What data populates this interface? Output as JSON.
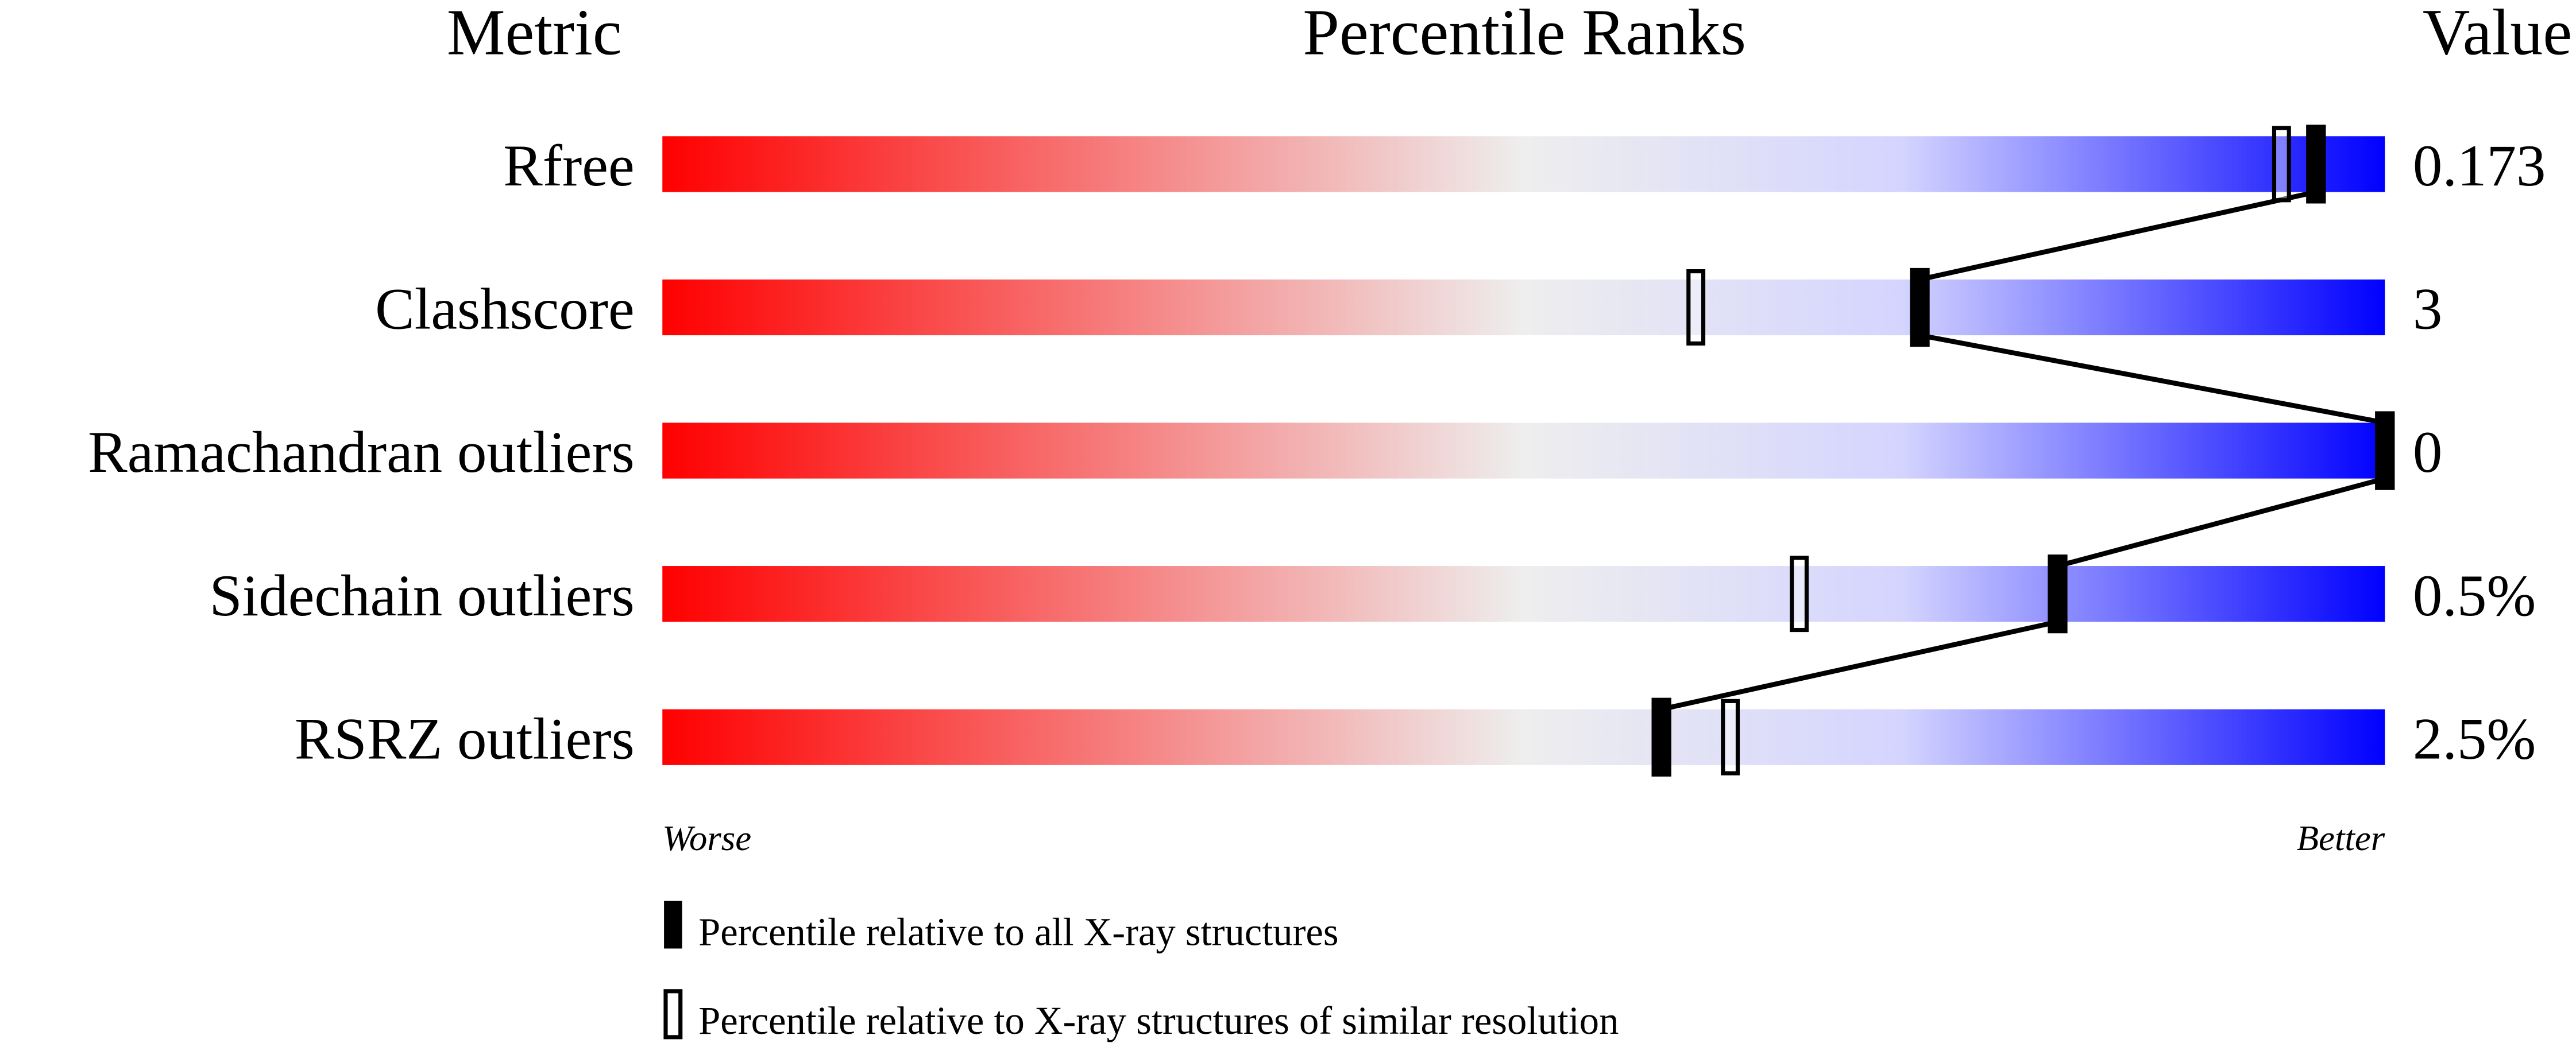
{
  "chart_data": {
    "type": "bar",
    "header": {
      "metric": "Metric",
      "title": "Percentile Ranks",
      "value": "Value"
    },
    "xlim": [
      0,
      100
    ],
    "axis_labels": {
      "left": "Worse",
      "right": "Better"
    },
    "gradient_colors": [
      "#ff0000",
      "#eeeeee",
      "#d8d8ff",
      "#0000ff"
    ],
    "categories": [
      "Rfree",
      "Clashscore",
      "Ramachandran outliers",
      "Sidechain outliers",
      "RSRZ outliers"
    ],
    "values_text": [
      "0.173",
      "3",
      "0",
      "0.5%",
      "2.5%"
    ],
    "series": [
      {
        "name": "Percentile relative to all X-ray structures",
        "style": "filled",
        "values": [
          96,
          73,
          100,
          81,
          58
        ]
      },
      {
        "name": "Percentile relative to X-ray structures of similar resolution",
        "style": "open",
        "values": [
          94,
          60,
          null,
          66,
          62
        ]
      }
    ],
    "legend": [
      "Percentile relative to all X-ray structures",
      "Percentile relative to X-ray structures of similar resolution"
    ]
  }
}
